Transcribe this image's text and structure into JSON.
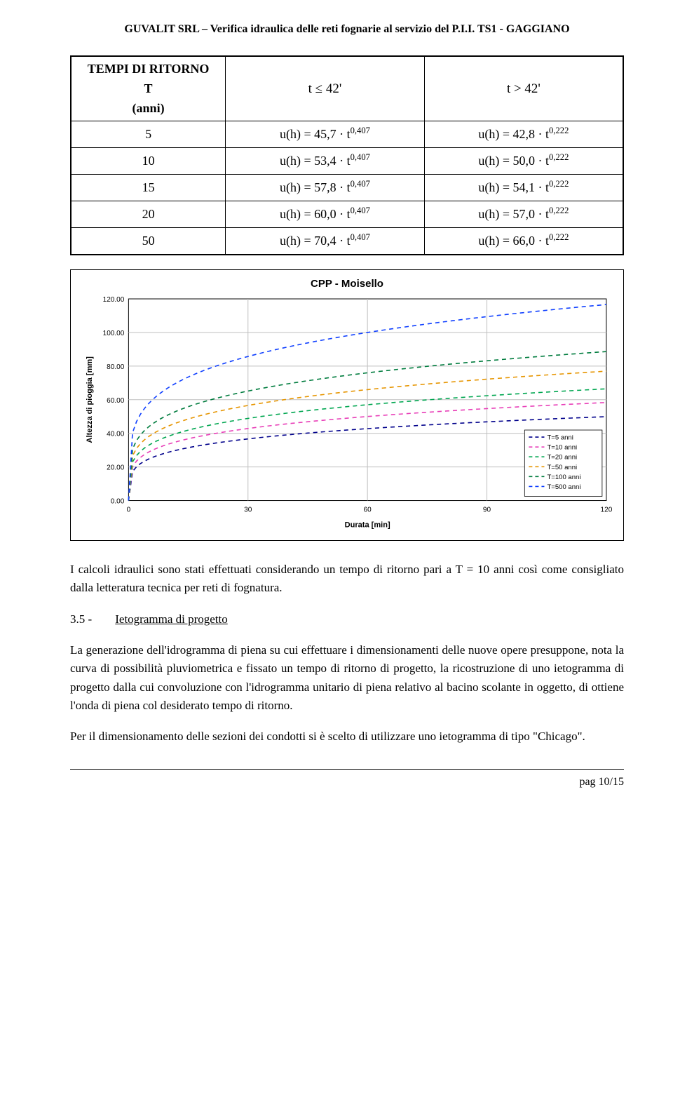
{
  "doc": {
    "header": "GUVALIT SRL – Verifica idraulica delle reti fognarie al servizio del P.I.I. TS1 - GAGGIANO",
    "footer": "pag 10/15"
  },
  "table": {
    "hdr_left_l1": "TEMPI DI RITORNO",
    "hdr_left_l2": "T",
    "hdr_left_l3": "(anni)",
    "hdr_mid": "t ≤ 42'",
    "hdr_right": "t > 42'",
    "rows": [
      {
        "t": "5",
        "a": "45,7",
        "ea": "0,407",
        "b": "42,8",
        "eb": "0,222"
      },
      {
        "t": "10",
        "a": "53,4",
        "ea": "0,407",
        "b": "50,0",
        "eb": "0,222"
      },
      {
        "t": "15",
        "a": "57,8",
        "ea": "0,407",
        "b": "54,1",
        "eb": "0,222"
      },
      {
        "t": "20",
        "a": "60,0",
        "ea": "0,407",
        "b": "57,0",
        "eb": "0,222"
      },
      {
        "t": "50",
        "a": "70,4",
        "ea": "0,407",
        "b": "66,0",
        "eb": "0,222"
      }
    ]
  },
  "chart": {
    "title": "CPP - Moisello",
    "xlabel": "Durata [min]",
    "ylabel": "Altezza di pioggia [mm]",
    "xlim": [
      0,
      120
    ],
    "ylim": [
      0,
      120
    ],
    "xticks": [
      0,
      30,
      60,
      90,
      120
    ],
    "yticks": [
      0,
      20,
      40,
      60,
      80,
      100,
      120
    ],
    "ytick_labels": [
      "0.00",
      "20.00",
      "40.00",
      "60.00",
      "80.00",
      "100.00",
      "120.00"
    ],
    "grid_color": "#bfbfbf",
    "border_color": "#000000",
    "bg": "#ffffff",
    "tick_font_size": 10,
    "label_font_size": 11,
    "series": [
      {
        "name": "T=5 anni",
        "color": "#00008b",
        "a": 42.8,
        "exp": 0.222
      },
      {
        "name": "T=10 anni",
        "color": "#e83fb8",
        "a": 50.0,
        "exp": 0.222
      },
      {
        "name": "T=20 anni",
        "color": "#00a650",
        "a": 57.0,
        "exp": 0.222
      },
      {
        "name": "T=50 anni",
        "color": "#e69500",
        "a": 66.0,
        "exp": 0.222
      },
      {
        "name": "T=100 anni",
        "color": "#007c3e",
        "a": 76.0,
        "exp": 0.222
      },
      {
        "name": "T=500 anni",
        "color": "#1040ff",
        "a": 100.0,
        "exp": 0.222
      }
    ],
    "line_dash": "6,5",
    "line_width": 1.6,
    "legend_pos": "bottom-right"
  },
  "paras": {
    "p1": "I calcoli idraulici sono stati effettuati considerando un tempo di ritorno pari a T = 10 anni così come consigliato dalla letteratura tecnica per reti di fognatura.",
    "sec_num": "3.5 -",
    "sec_title": "Ietogramma di progetto",
    "p2": "La generazione dell'idrogramma di piena su cui effettuare i dimensionamenti delle nuove opere presuppone, nota la curva di possibilità pluviometrica e fissato un tempo di ritorno di progetto, la ricostruzione di uno ietogramma di progetto dalla cui convoluzione con l'idrogramma unitario di piena relativo al bacino scolante in oggetto, di ottiene l'onda di piena col desiderato tempo di ritorno.",
    "p3": "Per il dimensionamento delle sezioni dei condotti si è scelto di utilizzare uno ietogramma di tipo \"Chicago\"."
  }
}
